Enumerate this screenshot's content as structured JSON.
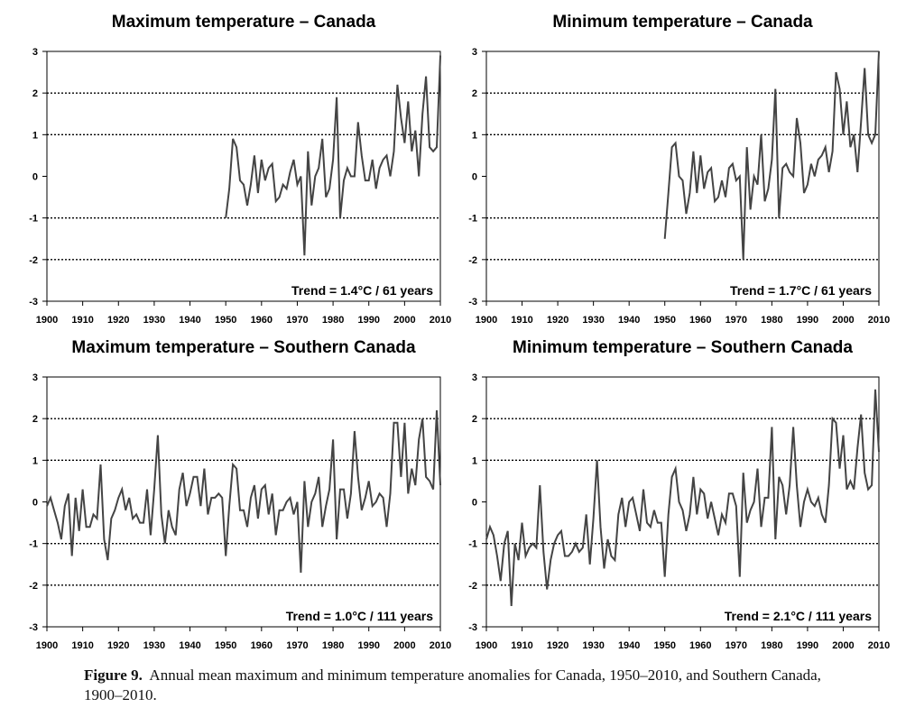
{
  "caption": {
    "label": "Figure 9.",
    "text": "Annual mean maximum and minimum temperature anomalies for Canada, 1950–2010, and Southern Canada, 1900–2010."
  },
  "style": {
    "line_color": "#444444",
    "axis_color": "#000000",
    "grid_color": "#000000"
  },
  "chart_data": [
    {
      "type": "line",
      "title": "Maximum temperature – Canada",
      "annotation": "Trend = 1.4°C / 61 years",
      "xlim": [
        1900,
        2010
      ],
      "ylim": [
        -3,
        3
      ],
      "xticks": [
        1900,
        1910,
        1920,
        1930,
        1940,
        1950,
        1960,
        1970,
        1980,
        1990,
        2000,
        2010
      ],
      "yticks": [
        3,
        2,
        1,
        0,
        -1,
        -2,
        -3
      ],
      "grid": "dotted horizontal at ±1, ±2",
      "x_start": 1950,
      "values": [
        -1.0,
        -0.3,
        0.9,
        0.7,
        -0.1,
        -0.2,
        -0.7,
        -0.2,
        0.5,
        -0.4,
        0.4,
        -0.1,
        0.2,
        0.3,
        -0.6,
        -0.5,
        -0.2,
        -0.3,
        0.1,
        0.4,
        -0.2,
        0.0,
        -1.9,
        0.6,
        -0.7,
        0.0,
        0.2,
        0.9,
        -0.5,
        -0.3,
        0.4,
        1.9,
        -1.0,
        -0.1,
        0.2,
        0.0,
        0.0,
        1.3,
        0.5,
        -0.1,
        -0.1,
        0.4,
        -0.3,
        0.2,
        0.4,
        0.5,
        0.0,
        0.6,
        2.2,
        1.4,
        0.8,
        1.8,
        0.6,
        1.1,
        0.0,
        1.5,
        2.4,
        0.7,
        0.6,
        0.7,
        2.9
      ]
    },
    {
      "type": "line",
      "title": "Minimum temperature – Canada",
      "annotation": "Trend = 1.7°C / 61 years",
      "xlim": [
        1900,
        2010
      ],
      "ylim": [
        -3,
        3
      ],
      "xticks": [
        1900,
        1910,
        1920,
        1930,
        1940,
        1950,
        1960,
        1970,
        1980,
        1990,
        2000,
        2010
      ],
      "yticks": [
        3,
        2,
        1,
        0,
        -1,
        -2,
        -3
      ],
      "grid": "dotted horizontal at ±1, ±2",
      "x_start": 1950,
      "values": [
        -1.5,
        -0.4,
        0.7,
        0.8,
        0.0,
        -0.1,
        -0.9,
        -0.4,
        0.6,
        -0.4,
        0.5,
        -0.3,
        0.1,
        0.2,
        -0.6,
        -0.5,
        -0.1,
        -0.5,
        0.2,
        0.3,
        -0.1,
        0.0,
        -2.0,
        0.7,
        -0.8,
        0.0,
        -0.2,
        1.0,
        -0.6,
        -0.3,
        0.4,
        2.1,
        -1.0,
        0.2,
        0.3,
        0.1,
        0.0,
        1.4,
        0.8,
        -0.4,
        -0.2,
        0.3,
        0.0,
        0.4,
        0.5,
        0.7,
        0.1,
        0.6,
        2.5,
        2.1,
        1.0,
        1.8,
        0.7,
        1.0,
        0.1,
        1.3,
        2.6,
        1.0,
        0.8,
        1.0,
        3.0
      ]
    },
    {
      "type": "line",
      "title": "Maximum temperature – Southern Canada",
      "annotation": "Trend = 1.0°C / 111 years",
      "xlim": [
        1900,
        2010
      ],
      "ylim": [
        -3,
        3
      ],
      "xticks": [
        1900,
        1910,
        1920,
        1930,
        1940,
        1950,
        1960,
        1970,
        1980,
        1990,
        2000,
        2010
      ],
      "yticks": [
        3,
        2,
        1,
        0,
        -1,
        -2,
        -3
      ],
      "grid": "dotted horizontal at ±1, ±2",
      "x_start": 1900,
      "values": [
        -0.1,
        0.1,
        -0.2,
        -0.5,
        -0.9,
        -0.1,
        0.2,
        -1.3,
        0.1,
        -0.7,
        0.3,
        -0.6,
        -0.6,
        -0.3,
        -0.4,
        0.9,
        -0.9,
        -1.4,
        -0.4,
        -0.2,
        0.1,
        0.3,
        -0.2,
        0.1,
        -0.4,
        -0.3,
        -0.5,
        -0.5,
        0.3,
        -0.8,
        0.3,
        1.6,
        -0.3,
        -1.0,
        -0.2,
        -0.6,
        -0.8,
        0.3,
        0.7,
        -0.1,
        0.2,
        0.6,
        0.6,
        -0.1,
        0.8,
        -0.3,
        0.1,
        0.1,
        0.2,
        0.1,
        -1.3,
        -0.1,
        0.9,
        0.8,
        -0.2,
        -0.2,
        -0.6,
        0.1,
        0.4,
        -0.4,
        0.3,
        0.4,
        -0.3,
        0.2,
        -0.8,
        -0.2,
        -0.2,
        0.0,
        0.1,
        -0.3,
        0.0,
        -1.7,
        0.5,
        -0.6,
        0.0,
        0.2,
        0.6,
        -0.6,
        -0.1,
        0.3,
        1.5,
        -0.9,
        0.3,
        0.3,
        -0.4,
        0.2,
        1.7,
        0.6,
        -0.2,
        0.1,
        0.5,
        -0.1,
        0.0,
        0.2,
        0.1,
        -0.6,
        0.2,
        1.9,
        1.9,
        0.6,
        1.9,
        0.2,
        0.8,
        0.4,
        1.5,
        2.0,
        0.6,
        0.5,
        0.3,
        2.2,
        0.4
      ]
    },
    {
      "type": "line",
      "title": "Minimum temperature – Southern Canada",
      "annotation": "Trend = 2.1°C / 111 years",
      "xlim": [
        1900,
        2010
      ],
      "ylim": [
        -3,
        3
      ],
      "xticks": [
        1900,
        1910,
        1920,
        1930,
        1940,
        1950,
        1960,
        1970,
        1980,
        1990,
        2000,
        2010
      ],
      "yticks": [
        3,
        2,
        1,
        0,
        -1,
        -2,
        -3
      ],
      "grid": "dotted horizontal at ±1, ±2",
      "x_start": 1900,
      "values": [
        -0.9,
        -0.6,
        -0.8,
        -1.3,
        -1.9,
        -1.0,
        -0.7,
        -2.5,
        -1.0,
        -1.4,
        -0.5,
        -1.3,
        -1.1,
        -1.0,
        -1.1,
        0.4,
        -1.2,
        -2.1,
        -1.4,
        -1.0,
        -0.8,
        -0.7,
        -1.3,
        -1.3,
        -1.2,
        -1.0,
        -1.2,
        -1.1,
        -0.3,
        -1.5,
        -0.4,
        1.0,
        -0.6,
        -1.6,
        -0.9,
        -1.3,
        -1.4,
        -0.3,
        0.1,
        -0.6,
        0.0,
        0.1,
        -0.3,
        -0.7,
        0.3,
        -0.5,
        -0.6,
        -0.2,
        -0.5,
        -0.5,
        -1.8,
        -0.3,
        0.6,
        0.8,
        0.0,
        -0.2,
        -0.7,
        -0.3,
        0.6,
        -0.3,
        0.3,
        0.2,
        -0.4,
        0.0,
        -0.4,
        -0.8,
        -0.3,
        -0.5,
        0.2,
        0.2,
        -0.1,
        -1.8,
        0.7,
        -0.5,
        -0.2,
        0.0,
        0.8,
        -0.6,
        0.1,
        0.1,
        1.8,
        -0.9,
        0.6,
        0.4,
        -0.3,
        0.4,
        1.8,
        0.4,
        -0.6,
        0.0,
        0.3,
        0.0,
        -0.1,
        0.1,
        -0.3,
        -0.5,
        0.4,
        2.0,
        1.9,
        0.8,
        1.6,
        0.3,
        0.5,
        0.3,
        1.3,
        2.1,
        0.7,
        0.3,
        0.4,
        2.7,
        1.2
      ]
    }
  ]
}
